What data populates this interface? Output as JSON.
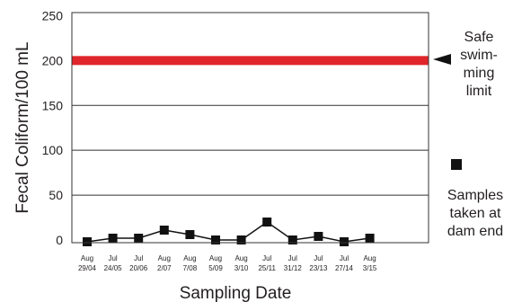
{
  "chart_data": {
    "type": "line",
    "xlabel": "Sampling Date",
    "ylabel": "Fecal Coliform/100 mL",
    "ylim": [
      0,
      250
    ],
    "yticks": [
      0,
      50,
      100,
      150,
      200,
      250
    ],
    "grid": true,
    "categories": [
      [
        "Aug",
        "29/04"
      ],
      [
        "Jul",
        "24/05"
      ],
      [
        "Jul",
        "20/06"
      ],
      [
        "Aug",
        "2/07"
      ],
      [
        "Aug",
        "7/08"
      ],
      [
        "Aug",
        "5/09"
      ],
      [
        "Aug",
        "3/10"
      ],
      [
        "Jul",
        "25/11"
      ],
      [
        "Jul",
        "31/12"
      ],
      [
        "Jul",
        "23/13"
      ],
      [
        "Jul",
        "27/14"
      ],
      [
        "Aug",
        "3/15"
      ]
    ],
    "series": [
      {
        "values": [
          -2,
          2,
          2,
          11,
          6,
          0,
          0,
          20,
          0,
          4,
          -2,
          2
        ],
        "color": "#111111"
      }
    ],
    "reference_line": {
      "value": 200,
      "color": "#e0262b"
    }
  },
  "annotations": {
    "limit_label": "Safe\nswim-\nming\nlimit",
    "samples_label": "Samples\ntaken at\ndam end"
  }
}
